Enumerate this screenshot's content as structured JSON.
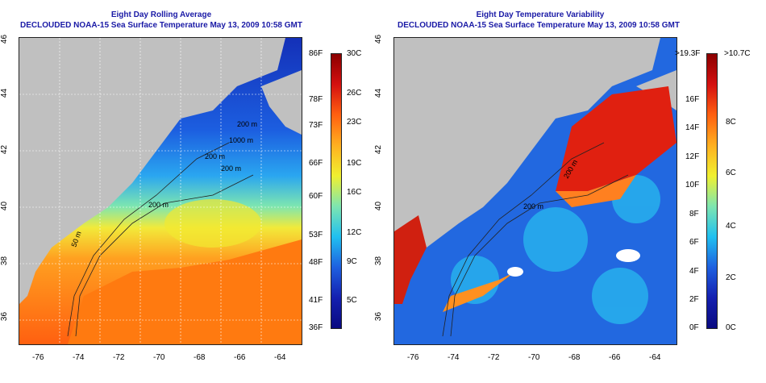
{
  "left_panel": {
    "title_line1": "Eight Day Rolling Average",
    "title_line2": "DECLOUDED NOAA-15 Sea Surface Temperature May 13, 2009 10:58 GMT",
    "x_ticks": [
      "-76",
      "-74",
      "-72",
      "-70",
      "-68",
      "-66",
      "-64"
    ],
    "y_ticks": [
      "46",
      "44",
      "42",
      "40",
      "38",
      "36"
    ],
    "contour_labels": [
      "200 m",
      "200 m",
      "200 m",
      "1000 m",
      "200 m",
      "50 m"
    ],
    "colorbar_left": [
      "86F",
      "78F",
      "73F",
      "66F",
      "60F",
      "53F",
      "48F",
      "41F",
      "36F"
    ],
    "colorbar_right": [
      "30C",
      "26C",
      "23C",
      "19C",
      "16C",
      "12C",
      "9C",
      "5C"
    ]
  },
  "right_panel": {
    "title_line1": "Eight Day Temperature Variability",
    "title_line2": "DECLOUDED NOAA-15 Sea Surface Temperature May 13, 2009 10:58 GMT",
    "x_ticks": [
      "-76",
      "-74",
      "-72",
      "-70",
      "-68",
      "-66",
      "-64"
    ],
    "y_ticks": [
      "46",
      "44",
      "42",
      "40",
      "38",
      "36"
    ],
    "contour_labels": [
      "200 m",
      "200 m"
    ],
    "colorbar_left": [
      ">19.3F",
      "16F",
      "14F",
      "12F",
      "10F",
      "8F",
      "6F",
      "4F",
      "2F",
      "0F"
    ],
    "colorbar_right": [
      ">10.7C",
      "8C",
      "6C",
      "4C",
      "2C",
      "0C"
    ]
  },
  "colors": {
    "title": "#1a1aa6",
    "land": "#c0c0c0"
  }
}
